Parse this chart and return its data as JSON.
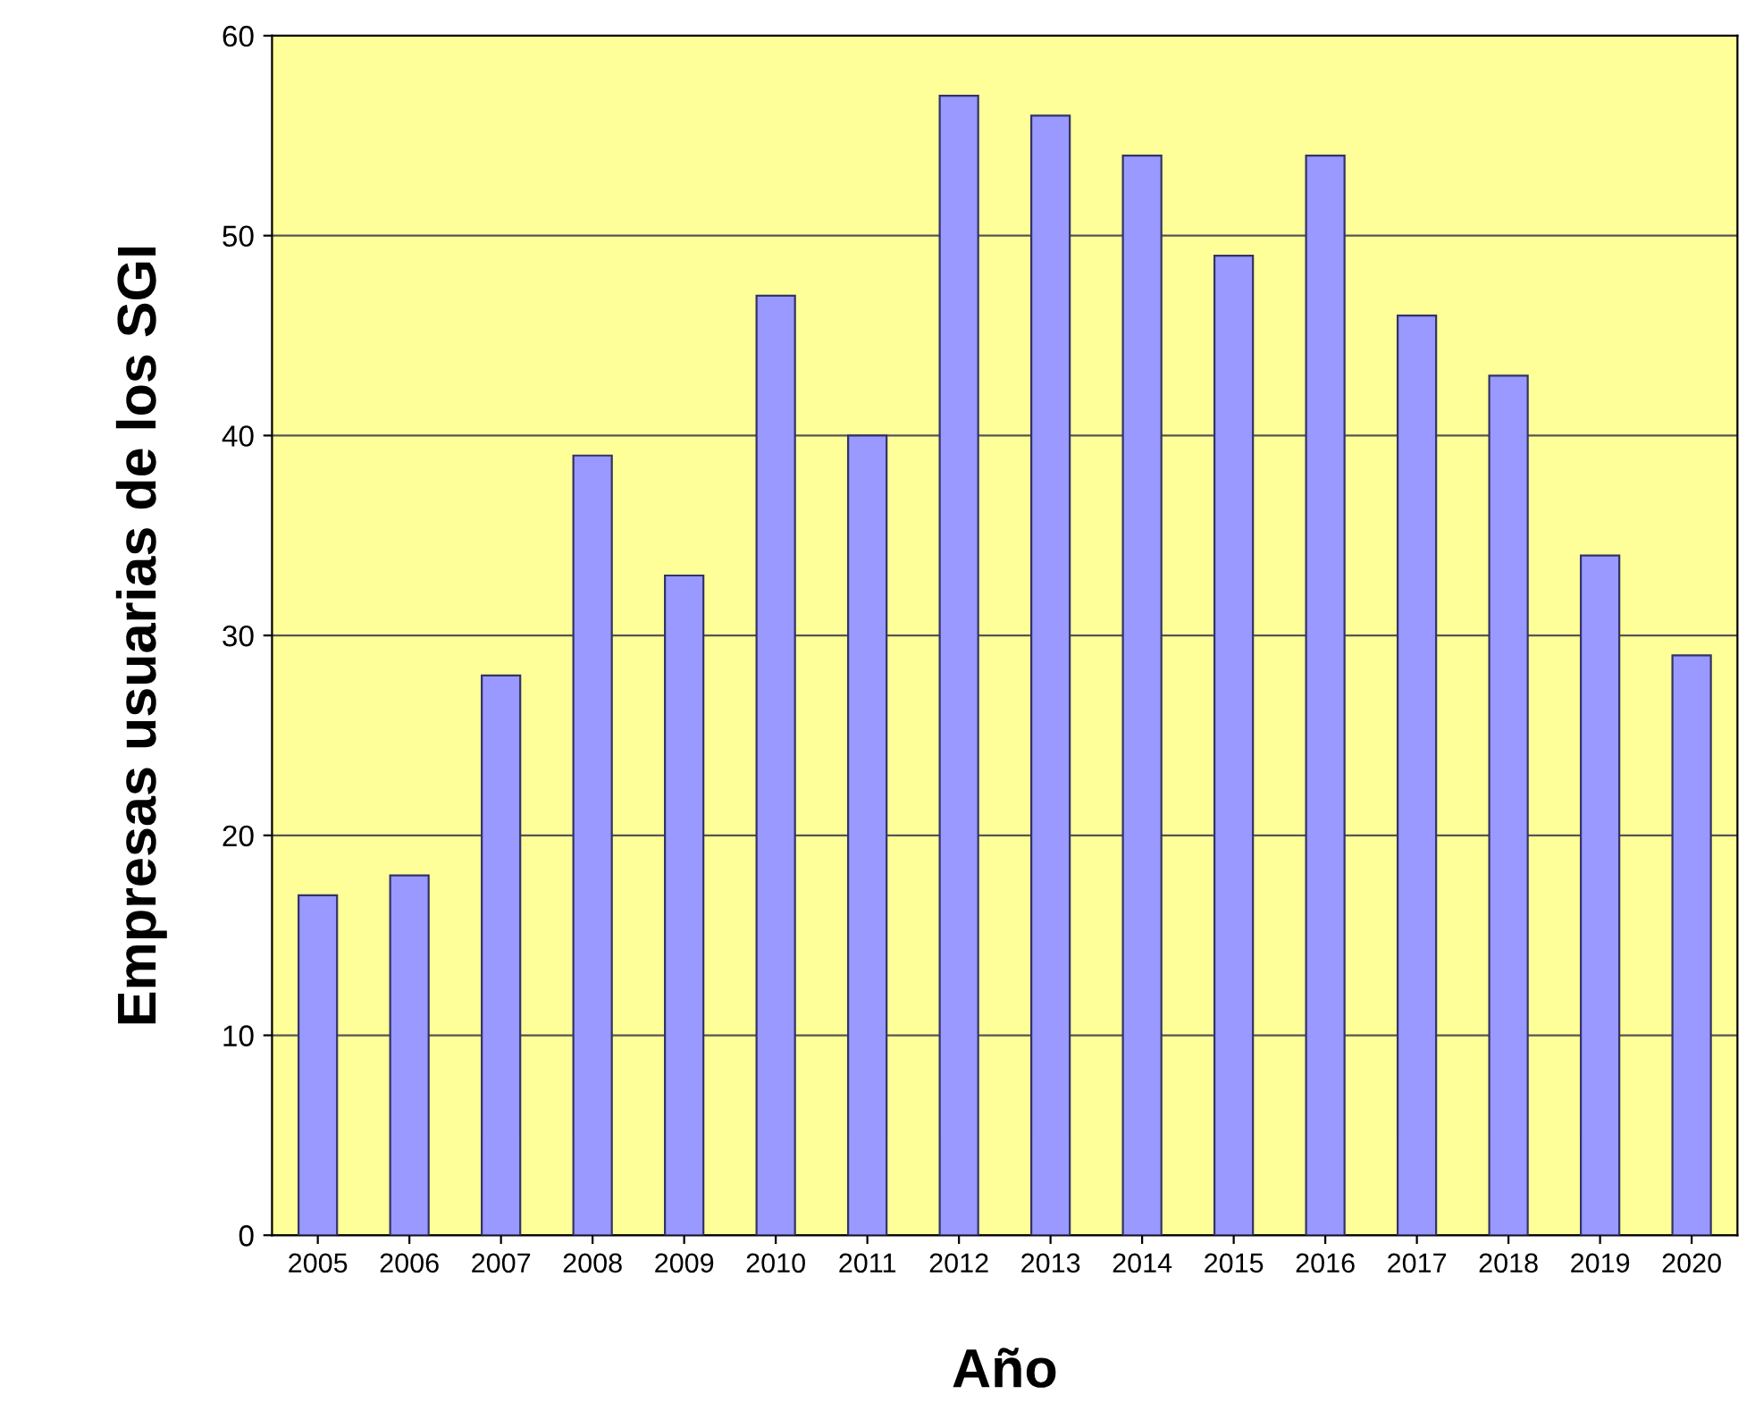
{
  "chart_data": {
    "type": "bar",
    "xlabel": "Año",
    "ylabel": "Empresas usuarias de los SGI",
    "categories": [
      "2005",
      "2006",
      "2007",
      "2008",
      "2009",
      "2010",
      "2011",
      "2012",
      "2013",
      "2014",
      "2015",
      "2016",
      "2017",
      "2018",
      "2019",
      "2020"
    ],
    "values": [
      17,
      18,
      28,
      39,
      33,
      47,
      40,
      57,
      56,
      54,
      49,
      54,
      46,
      43,
      34,
      29
    ],
    "color": "#9999ff",
    "ylim": [
      0,
      60
    ],
    "yticks": [
      0,
      10,
      20,
      30,
      40,
      50,
      60
    ],
    "grid": "y"
  }
}
